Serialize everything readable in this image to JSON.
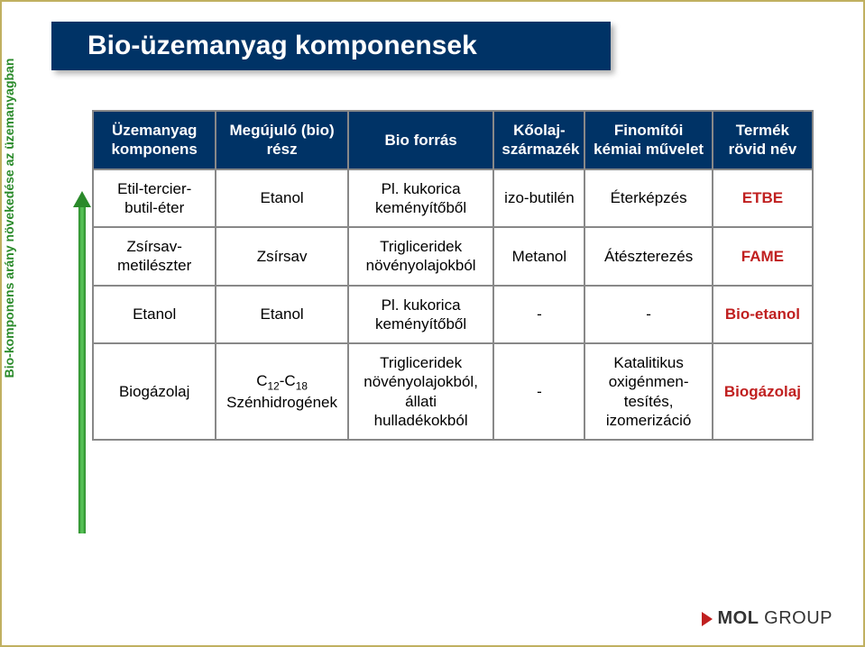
{
  "title": "Bio-üzemanyag komponensek",
  "yaxis_label": "Bio-komponens arány növekedése az üzemanyagban",
  "arrow_color": "#2a8a2a",
  "table": {
    "header_bg": "#003366",
    "header_fg": "#ffffff",
    "border_color": "#888888",
    "abbr_color": "#c02020",
    "columns": [
      "Üzemanyag komponens",
      "Megújuló (bio) rész",
      "Bio forrás",
      "Kőolaj-származék",
      "Finomítói kémiai művelet",
      "Termék rövid név"
    ],
    "rows": [
      {
        "component": "Etil-tercier-butil-éter",
        "bio_part": "Etanol",
        "bio_source": "Pl. kukorica keményítőből",
        "petroleum": "izo-butilén",
        "operation": "Éterképzés",
        "abbr": "ETBE"
      },
      {
        "component": "Zsírsav-metilészter",
        "bio_part": "Zsírsav",
        "bio_source": "Trigliceridek növényolajokból",
        "petroleum": "Metanol",
        "operation": "Átészterezés",
        "abbr": "FAME"
      },
      {
        "component": "Etanol",
        "bio_part": "Etanol",
        "bio_source": "Pl. kukorica keményítőből",
        "petroleum": "-",
        "operation": "-",
        "abbr": "Bio-etanol"
      },
      {
        "component": "Biogázolaj",
        "bio_part_html": "C<sub>12</sub>-C<sub>18</sub> Szénhidrogének",
        "bio_part": "C12-C18 Szénhidrogének",
        "bio_source": "Trigliceridek növényolajokból, állati hulladékokból",
        "petroleum": "-",
        "operation": "Katalitikus oxigénmen-tesítés, izomerizáció",
        "abbr": "Biogázolaj"
      }
    ]
  },
  "logo": {
    "brand": "MOL",
    "suffix": "GROUP",
    "triangle_color": "#c02020"
  }
}
